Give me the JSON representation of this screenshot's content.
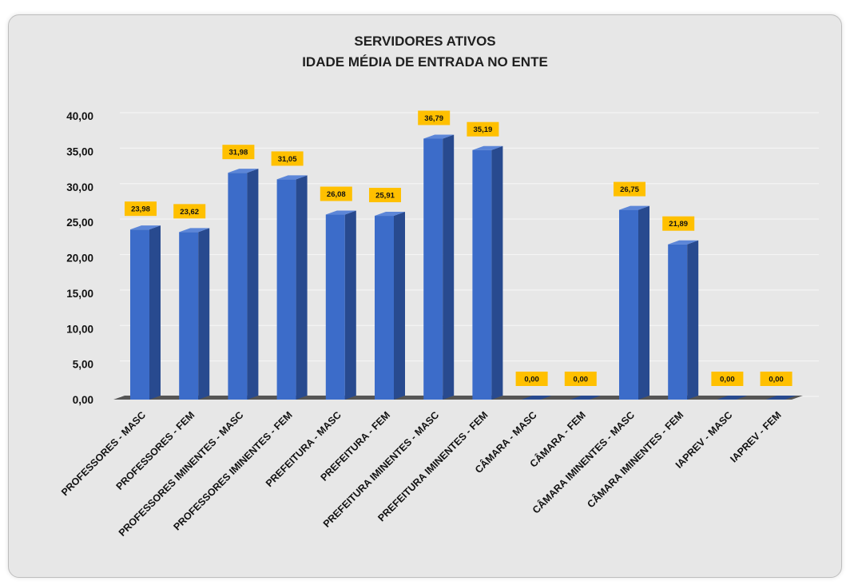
{
  "colors": {
    "background": "#e7e7e7",
    "bar_front": "#3c6cc9",
    "bar_side": "#284a8f",
    "bar_top": "#5c86d8",
    "label_bg": "#ffc000",
    "grid": "#f4f4f4",
    "floor": "#555555"
  },
  "chart_data": {
    "type": "bar",
    "title": "SERVIDORES ATIVOS",
    "subtitle": "IDADE MÉDIA DE ENTRADA NO ENTE",
    "categories": [
      "PROFESSORES - MASC",
      "PROFESSORES - FEM",
      "PROFESSORES IMINENTES - MASC",
      "PROFESSORES IMINENTES - FEM",
      "PREFEITURA - MASC",
      "PREFEITURA - FEM",
      "PREFEITURA IMINENTES - MASC",
      "PREFEITURA IMINENTES - FEM",
      "CÂMARA - MASC",
      "CÂMARA - FEM",
      "CÂMARA IMINENTES - MASC",
      "CÂMARA IMINENTES - FEM",
      "IAPREV - MASC",
      "IAPREV - FEM"
    ],
    "values": [
      23.98,
      23.62,
      31.98,
      31.05,
      26.08,
      25.91,
      36.79,
      35.19,
      0.0,
      0.0,
      26.75,
      21.89,
      0.0,
      0.0
    ],
    "data_labels": [
      "23,98",
      "23,62",
      "31,98",
      "31,05",
      "26,08",
      "25,91",
      "36,79",
      "35,19",
      "0,00",
      "0,00",
      "26,75",
      "21,89",
      "0,00",
      "0,00"
    ],
    "yticks": [
      "0,00",
      "5,00",
      "10,00",
      "15,00",
      "20,00",
      "25,00",
      "30,00",
      "35,00",
      "40,00"
    ],
    "ylim": [
      0,
      40
    ],
    "grid": true,
    "legend": "none"
  }
}
